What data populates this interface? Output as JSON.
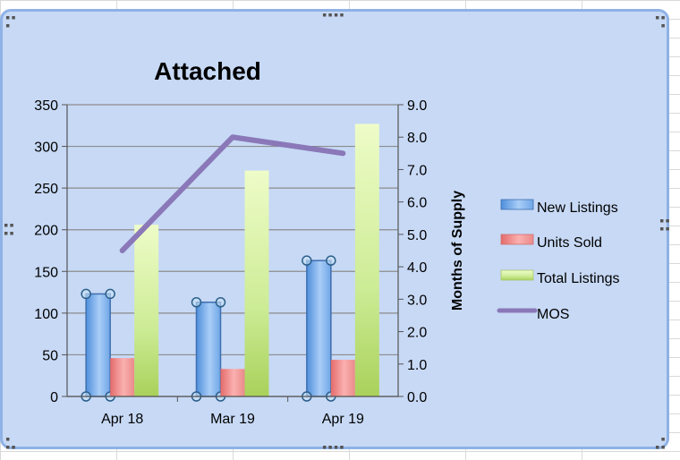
{
  "chart_data": {
    "type": "bar",
    "title": "Attached",
    "categories": [
      "Apr 18",
      "Mar 19",
      "Apr 19"
    ],
    "series": [
      {
        "name": "New Listings",
        "type": "bar",
        "axis": "left",
        "values": [
          123,
          113,
          163
        ],
        "color": "#6ea8e8"
      },
      {
        "name": "Units Sold",
        "type": "bar",
        "axis": "left",
        "values": [
          46,
          33,
          44
        ],
        "color": "#f08c8c"
      },
      {
        "name": "Total Listings",
        "type": "bar",
        "axis": "left",
        "values": [
          206,
          271,
          327
        ],
        "color": "#c6e88a"
      },
      {
        "name": "MOS",
        "type": "line",
        "axis": "right",
        "values": [
          4.5,
          8.0,
          7.5
        ],
        "color": "#8a78b8"
      }
    ],
    "y_left": {
      "min": 0,
      "max": 350,
      "ticks": [
        "0",
        "50",
        "100",
        "150",
        "200",
        "250",
        "300",
        "350"
      ]
    },
    "y_right": {
      "label": "Months of Supply",
      "min": 0,
      "max": 9,
      "ticks": [
        "0.0",
        "1.0",
        "2.0",
        "3.0",
        "4.0",
        "5.0",
        "6.0",
        "7.0",
        "8.0",
        "9.0"
      ]
    },
    "grid": true,
    "legend_position": "right"
  }
}
